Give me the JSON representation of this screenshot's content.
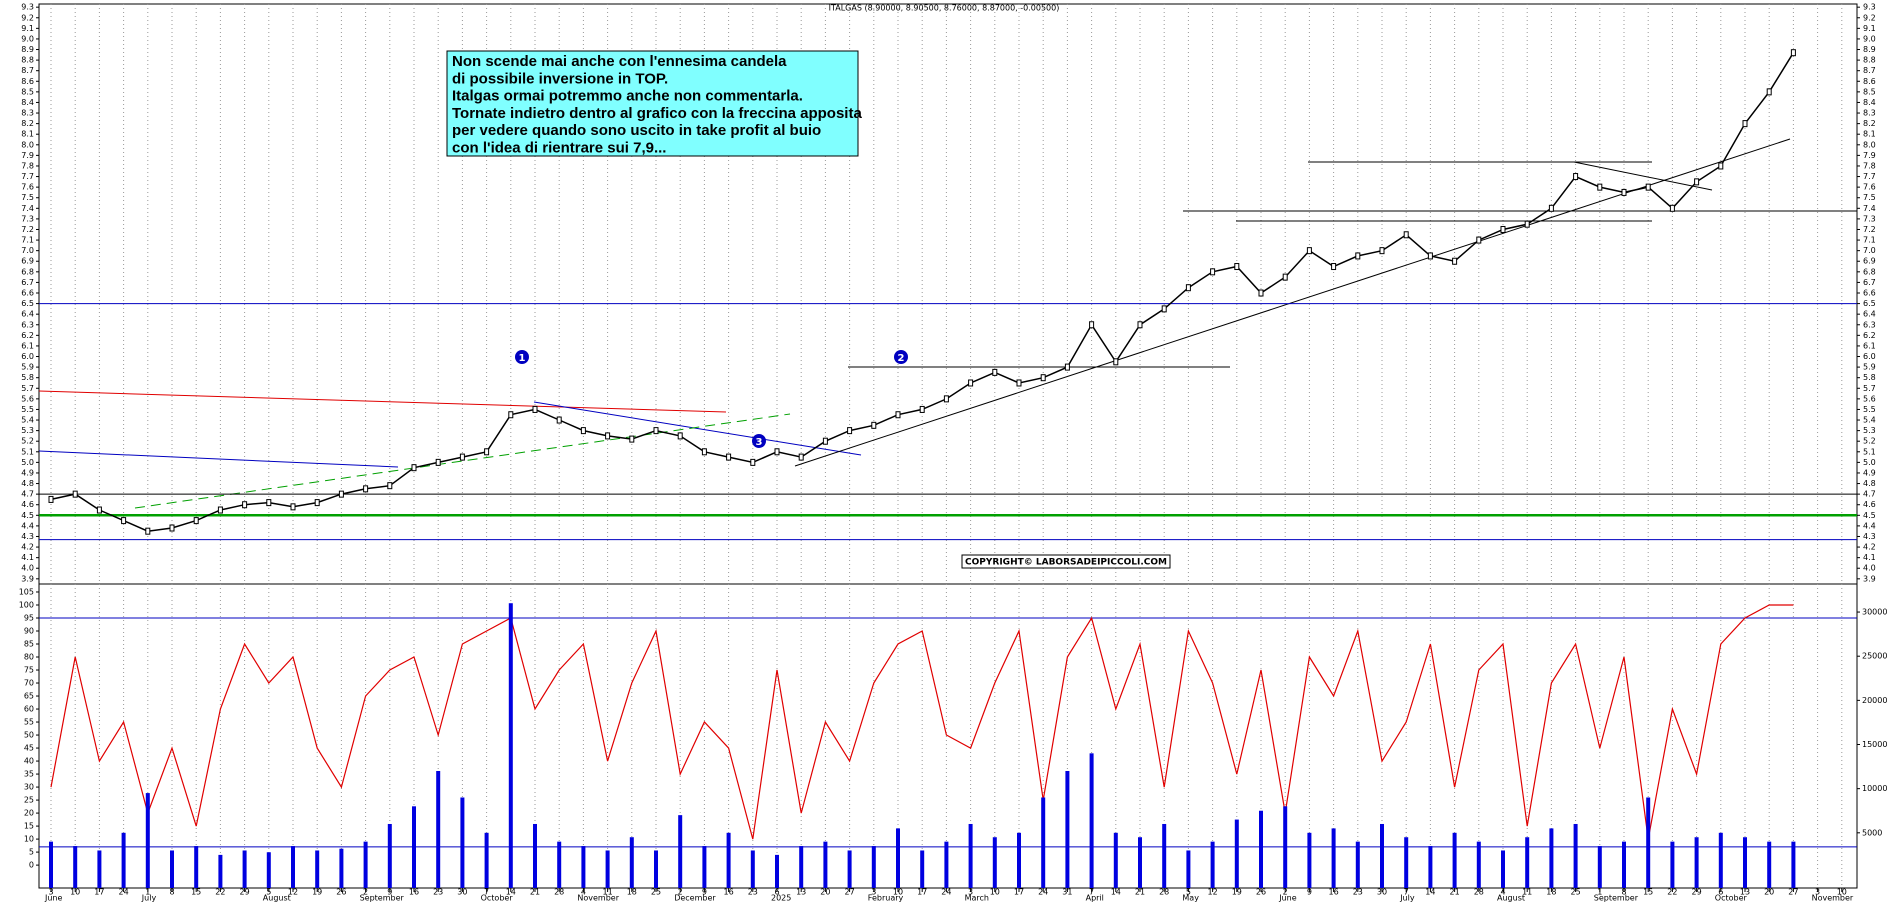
{
  "chart_data": [
    {
      "type": "line",
      "title": "ITALGAS (8.90000, 8.90500, 8.76000, 8.87000, -0.00500)",
      "annotation": [
        "Non scende mai anche con l'ennesima candela",
        "di possibile inversione in TOP.",
        "Italgas ormai potremmo anche non commentarla.",
        "Tornate indietro dentro al grafico con la freccina apposita",
        "per vedere quando sono uscito in take profit al buio",
        "con l'idea di rientrare sui 7,9..."
      ],
      "markers": [
        "1",
        "2",
        "3"
      ],
      "copyright": "COPYRIGHT© LABORSADEIPICCOLI.COM",
      "categories": [
        "3",
        "10",
        "17",
        "24",
        "1",
        "8",
        "15",
        "22",
        "29",
        "5",
        "12",
        "19",
        "26",
        "2",
        "9",
        "16",
        "23",
        "30",
        "7",
        "14",
        "21",
        "28",
        "4",
        "11",
        "18",
        "25",
        "2",
        "9",
        "16",
        "23",
        "6",
        "13",
        "20",
        "27",
        "3",
        "10",
        "17",
        "24",
        "3",
        "10",
        "17",
        "24",
        "31",
        "7",
        "14",
        "21",
        "28",
        "5",
        "12",
        "19",
        "26",
        "2",
        "9",
        "16",
        "23",
        "30",
        "7",
        "14",
        "21",
        "28",
        "4",
        "11",
        "18",
        "25",
        "1",
        "8",
        "15",
        "22",
        "29",
        "6",
        "13",
        "20",
        "27",
        "3",
        "10"
      ],
      "month_labels": [
        "June",
        null,
        null,
        null,
        "July",
        null,
        null,
        null,
        null,
        "August",
        null,
        null,
        null,
        "September",
        null,
        null,
        null,
        null,
        "October",
        null,
        null,
        null,
        "November",
        null,
        null,
        null,
        "December",
        null,
        null,
        null,
        "2025",
        null,
        null,
        null,
        "February",
        null,
        null,
        null,
        "March",
        null,
        null,
        null,
        null,
        "April",
        null,
        null,
        null,
        "May",
        null,
        null,
        null,
        "June",
        null,
        null,
        null,
        null,
        "July",
        null,
        null,
        null,
        "August",
        null,
        null,
        null,
        "September",
        null,
        null,
        null,
        null,
        "October",
        null,
        null,
        null,
        "November",
        null
      ],
      "values": [
        4.65,
        4.7,
        4.55,
        4.45,
        4.35,
        4.38,
        4.45,
        4.55,
        4.6,
        4.62,
        4.58,
        4.62,
        4.7,
        4.75,
        4.78,
        4.95,
        5.0,
        5.05,
        5.1,
        5.45,
        5.5,
        5.4,
        5.3,
        5.25,
        5.22,
        5.3,
        5.25,
        5.1,
        5.05,
        5.0,
        5.1,
        5.05,
        5.2,
        5.3,
        5.35,
        5.45,
        5.5,
        5.6,
        5.75,
        5.85,
        5.75,
        5.8,
        5.9,
        6.3,
        5.95,
        6.3,
        6.45,
        6.65,
        6.8,
        6.85,
        6.6,
        6.75,
        7.0,
        6.85,
        6.95,
        7.0,
        7.15,
        6.95,
        6.9,
        7.1,
        7.2,
        7.25,
        7.4,
        7.7,
        7.6,
        7.55,
        7.6,
        7.4,
        7.65,
        7.8,
        8.2,
        8.5,
        8.87,
        null,
        null
      ],
      "color": "#000000",
      "hlines": [
        {
          "value": 6.5,
          "color": "#0000c0"
        },
        {
          "value": 4.7,
          "color": "#000000"
        },
        {
          "value": 4.5,
          "color": "#00a000"
        },
        {
          "value": 4.27,
          "color": "#0000c0"
        }
      ],
      "ylim": [
        3.87,
        9.33
      ],
      "yticks": [
        3.9,
        {
          "value": 4,
          "label": "4.0"
        },
        4.1,
        4.2,
        4.3,
        4.4,
        4.5,
        4.6,
        4.7,
        4.8,
        4.9,
        {
          "value": 5,
          "label": "5.0"
        },
        5.1,
        5.2,
        5.3,
        5.4,
        5.5,
        5.6,
        5.7,
        5.8,
        5.9,
        {
          "value": 6,
          "label": "6.0"
        },
        6.1,
        6.2,
        6.3,
        6.4,
        6.5,
        6.6,
        6.7,
        6.8,
        6.9,
        {
          "value": 7,
          "label": "7.0"
        },
        7.1,
        7.2,
        7.3,
        7.4,
        7.5,
        7.6,
        7.7,
        7.8,
        7.9,
        {
          "value": 8,
          "label": "8.0"
        },
        8.1,
        8.2,
        8.3,
        8.4,
        8.5,
        8.6,
        8.7,
        8.8,
        8.9,
        {
          "value": 9,
          "label": "9.0"
        },
        9.1,
        9.2,
        9.3
      ],
      "grid": true
    },
    {
      "type": "line",
      "series": [
        {
          "color": "#e00000",
          "values": [
            30,
            80,
            40,
            55,
            20,
            45,
            15,
            60,
            85,
            70,
            80,
            45,
            30,
            65,
            75,
            80,
            50,
            85,
            90,
            95,
            60,
            75,
            85,
            40,
            70,
            90,
            35,
            55,
            45,
            10,
            75,
            20,
            55,
            40,
            70,
            85,
            90,
            50,
            45,
            70,
            90,
            25,
            80,
            95,
            60,
            85,
            30,
            90,
            70,
            35,
            75,
            20,
            80,
            65,
            90,
            40,
            55,
            85,
            30,
            75,
            85,
            15,
            70,
            85,
            45,
            80,
            10,
            60,
            35,
            85,
            95,
            100,
            100,
            null,
            null
          ]
        },
        {
          "color": "#0000e0",
          "axis": "y2",
          "type": "bar",
          "values": [
            4000,
            3500,
            3000,
            5000,
            9500,
            3000,
            3500,
            2500,
            3000,
            2800,
            3500,
            3000,
            3200,
            4000,
            6000,
            8000,
            12000,
            9000,
            5000,
            31000,
            6000,
            4000,
            3500,
            3000,
            4500,
            3000,
            7000,
            3500,
            5000,
            3000,
            2500,
            3500,
            4000,
            3000,
            3500,
            5500,
            3000,
            4000,
            6000,
            4500,
            5000,
            9000,
            12000,
            14000,
            5000,
            4500,
            6000,
            3000,
            4000,
            6500,
            7500,
            8000,
            5000,
            5500,
            4000,
            6000,
            4500,
            3500,
            5000,
            4000,
            3000,
            4500,
            5500,
            6000,
            3500,
            4000,
            9000,
            4000,
            4500,
            5000,
            4500,
            4000,
            4000,
            null,
            null
          ]
        }
      ],
      "hlines": [
        {
          "value": 95,
          "color": "#0000c0"
        },
        {
          "value": 7,
          "color": "#0000c0"
        }
      ],
      "ylim": [
        -8.8,
        107.3
      ],
      "yticks": [
        0,
        5,
        10,
        15,
        20,
        25,
        30,
        35,
        40,
        45,
        50,
        55,
        60,
        65,
        70,
        75,
        80,
        85,
        90,
        95,
        100,
        105
      ],
      "y2lim": [
        -1250,
        32950
      ],
      "y2ticks": [
        5000,
        10000,
        15000,
        20000,
        25000,
        30000
      ]
    }
  ]
}
